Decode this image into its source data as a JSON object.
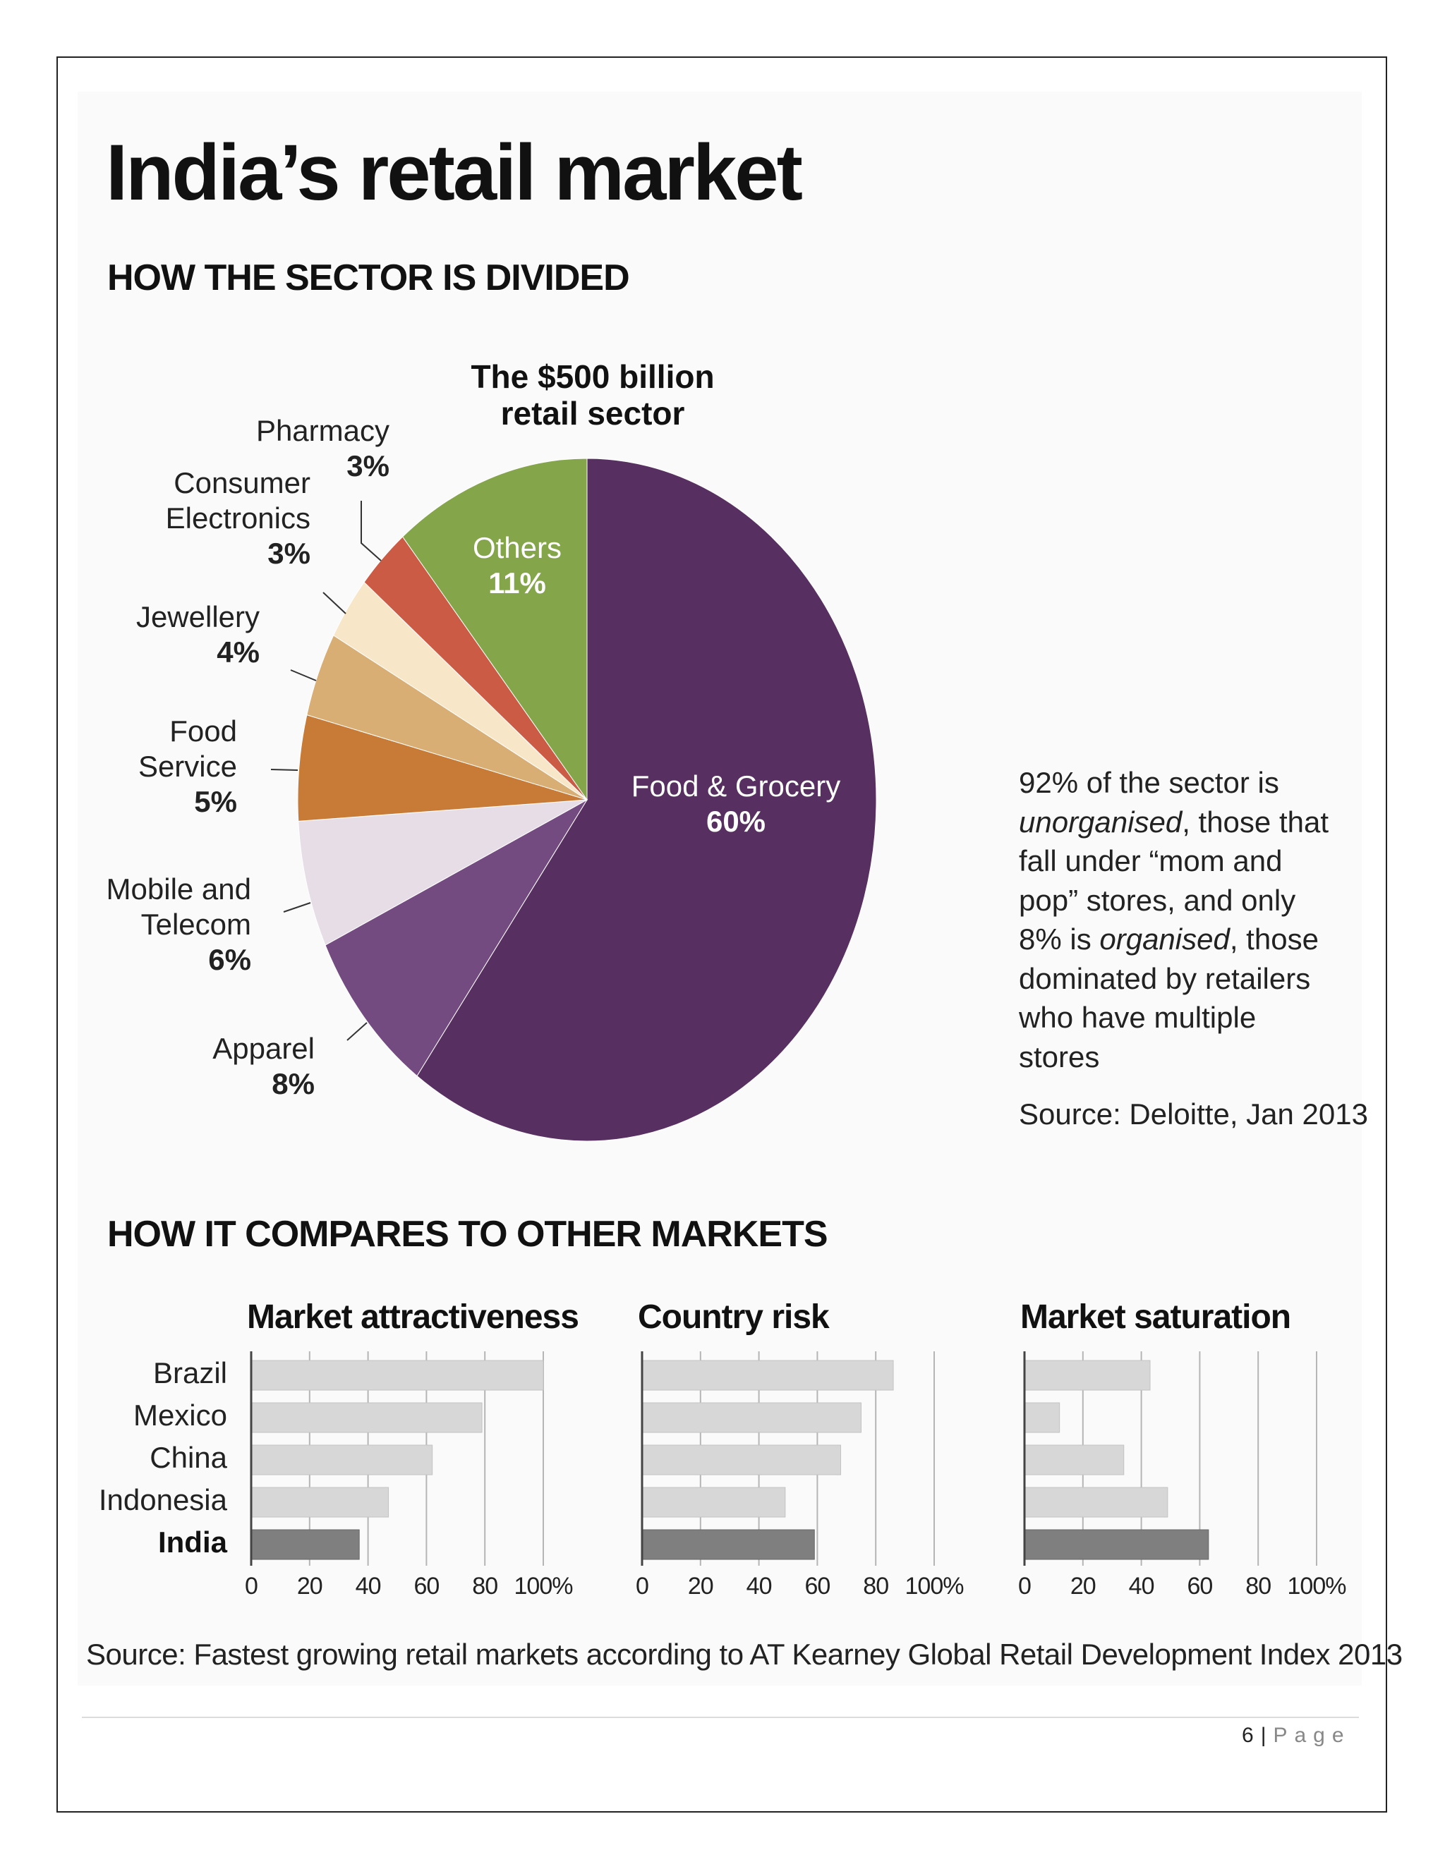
{
  "title": "India’s retail market",
  "sections": {
    "divided": "HOW THE SECTOR IS DIVIDED",
    "compares": "HOW IT COMPARES TO OTHER MARKETS"
  },
  "pie": {
    "title_line1": "The $500 billion",
    "title_line2": "retail sector",
    "note_part1": "92% of the sector is ",
    "note_em1": "unorganised",
    "note_part2": ", those that fall under “mom and pop” stores, and only 8% is ",
    "note_em2": "organised",
    "note_part3": ", those dominated by retailers who have multiple stores",
    "source": "Source: Deloitte, Jan 2013"
  },
  "chart_data": [
    {
      "type": "pie",
      "title": "The $500 billion retail sector",
      "slices": [
        {
          "label": "Food & Grocery",
          "value": 60,
          "pct_label": "60%",
          "color": "#582f61"
        },
        {
          "label": "Apparel",
          "value": 8,
          "pct_label": "8%",
          "color": "#744b81"
        },
        {
          "label_lines": [
            "Mobile and",
            "Telecom"
          ],
          "label": "Mobile and Telecom",
          "value": 6,
          "pct_label": "6%",
          "color": "#e6dde6"
        },
        {
          "label_lines": [
            "Food",
            "Service"
          ],
          "label": "Food Service",
          "value": 5,
          "pct_label": "5%",
          "color": "#c77b36"
        },
        {
          "label": "Jewellery",
          "value": 4,
          "pct_label": "4%",
          "color": "#d8ae74"
        },
        {
          "label_lines": [
            "Consumer",
            "Electronics"
          ],
          "label": "Consumer Electronics",
          "value": 3,
          "pct_label": "3%",
          "color": "#f7e6c8"
        },
        {
          "label": "Pharmacy",
          "value": 3,
          "pct_label": "3%",
          "color": "#cb5b45"
        },
        {
          "label": "Others",
          "value": 11,
          "pct_label": "11%",
          "color": "#84a54a"
        }
      ]
    },
    {
      "type": "bar",
      "orientation": "horizontal",
      "title": "Market attractiveness",
      "categories": [
        "Brazil",
        "Mexico",
        "China",
        "Indonesia",
        "India"
      ],
      "values": [
        100,
        79,
        62,
        47,
        37
      ],
      "highlight": "India",
      "xlim": [
        0,
        100
      ],
      "ticks": [
        "0",
        "20",
        "40",
        "60",
        "80",
        "100%"
      ]
    },
    {
      "type": "bar",
      "orientation": "horizontal",
      "title": "Country risk",
      "categories": [
        "Brazil",
        "Mexico",
        "China",
        "Indonesia",
        "India"
      ],
      "values": [
        86,
        75,
        68,
        49,
        59
      ],
      "highlight": "India",
      "xlim": [
        0,
        100
      ],
      "ticks": [
        "0",
        "20",
        "40",
        "60",
        "80",
        "100%"
      ]
    },
    {
      "type": "bar",
      "orientation": "horizontal",
      "title": "Market saturation",
      "categories": [
        "Brazil",
        "Mexico",
        "China",
        "Indonesia",
        "India"
      ],
      "values": [
        43,
        12,
        34,
        49,
        63
      ],
      "highlight": "India",
      "xlim": [
        0,
        100
      ],
      "ticks": [
        "0",
        "20",
        "40",
        "60",
        "80",
        "100%"
      ]
    }
  ],
  "bars_source": "Source: Fastest growing retail markets according to AT Kearney Global Retail Development Index 2013",
  "footer": {
    "page_number": "6",
    "separator": "|",
    "page_word": "Page"
  }
}
